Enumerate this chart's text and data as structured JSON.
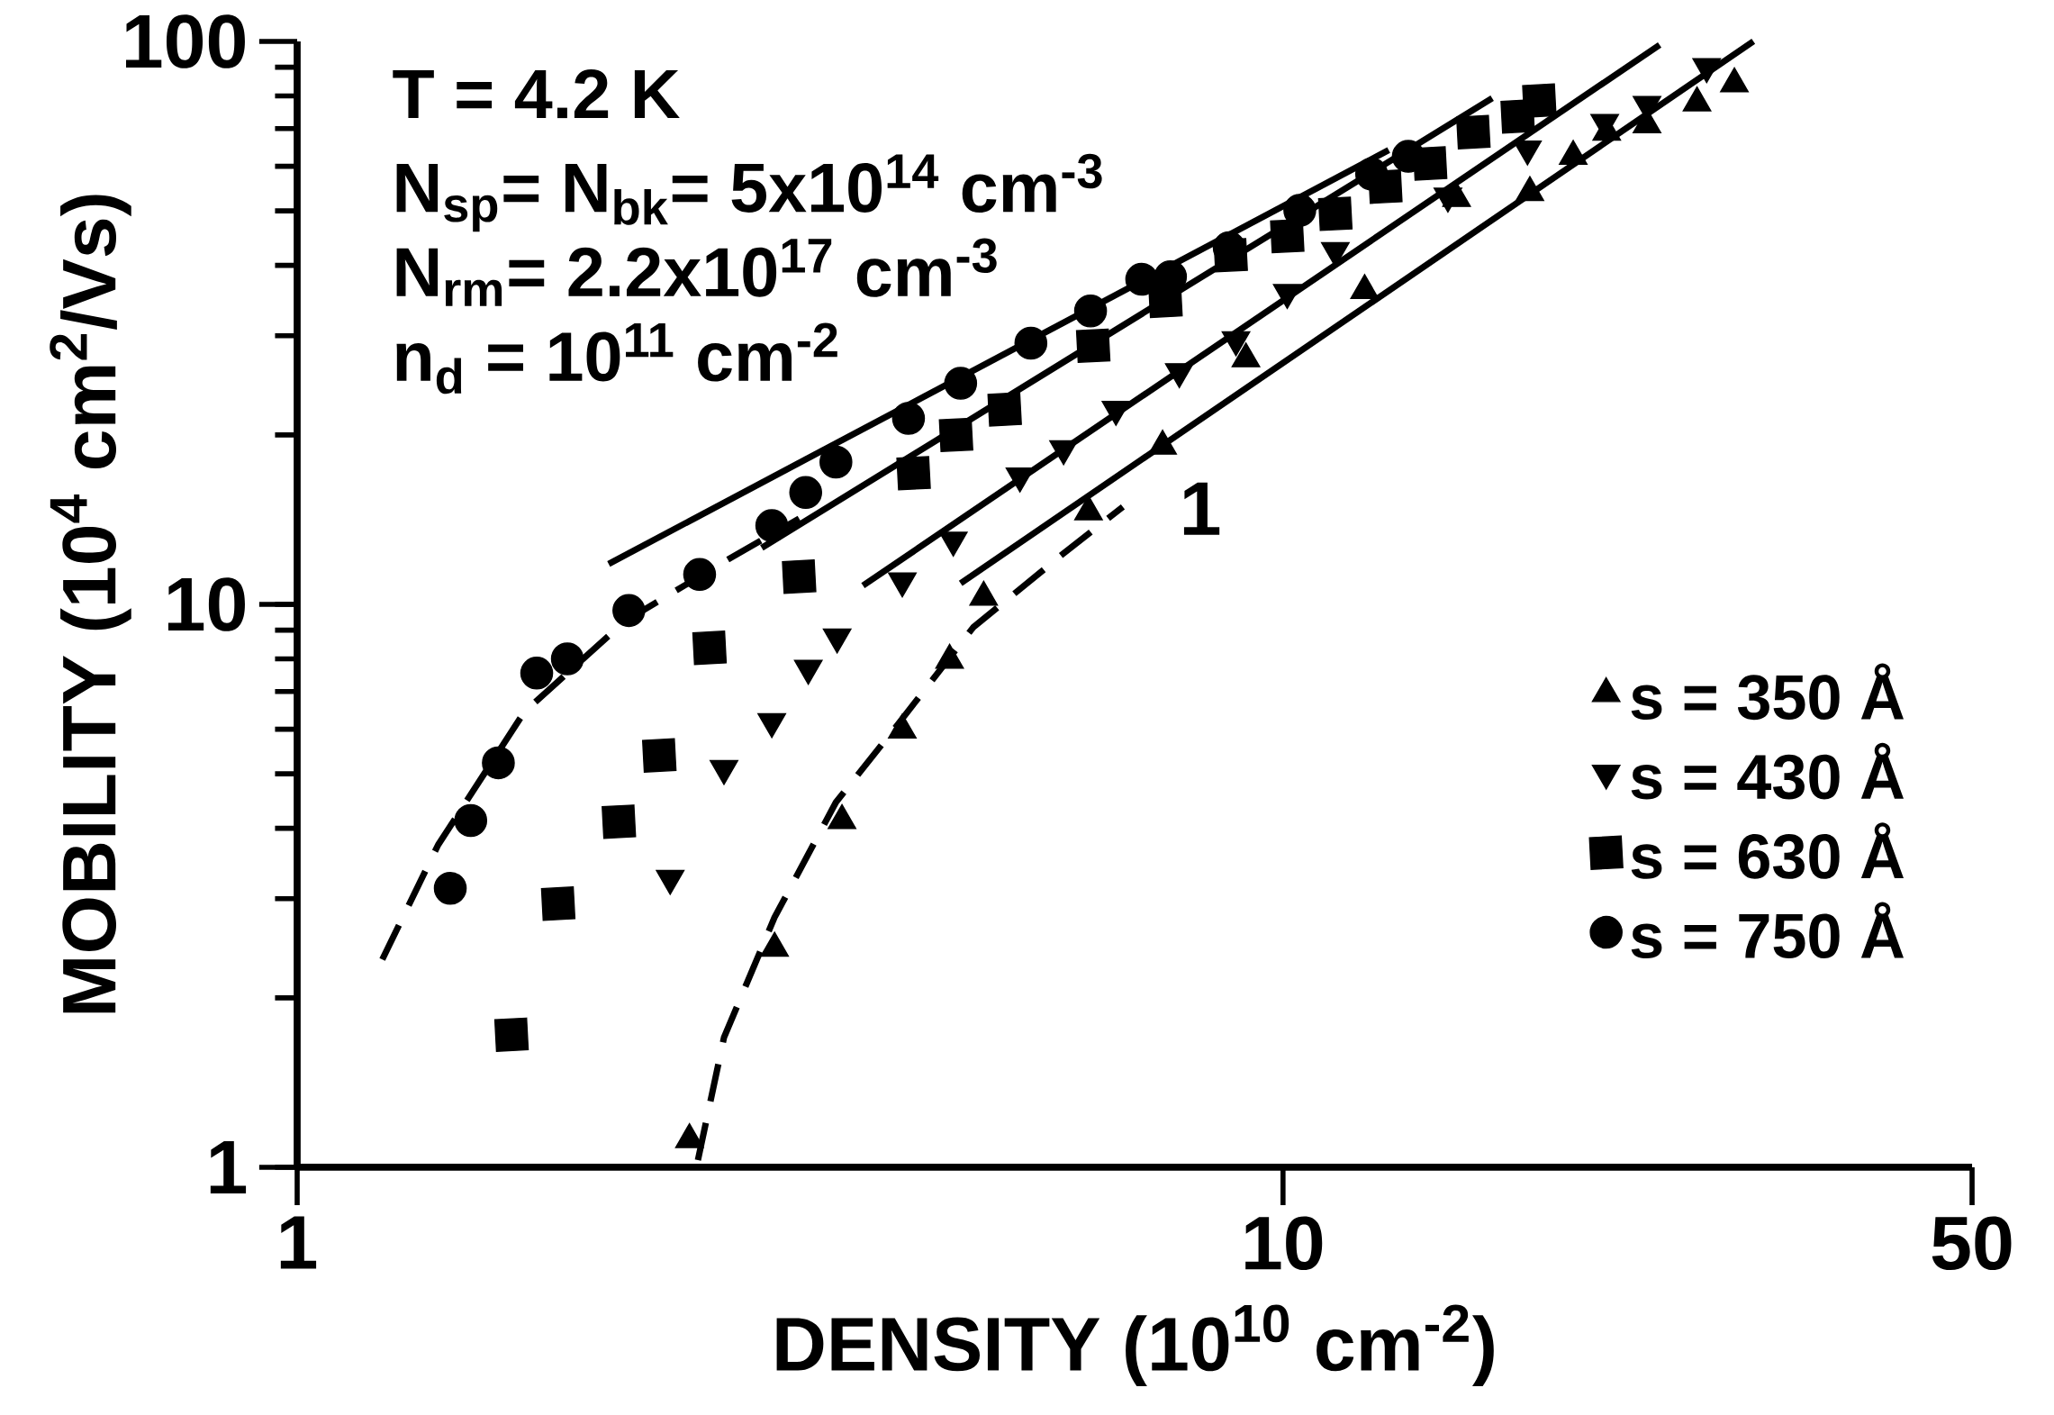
{
  "chart_data": {
    "type": "scatter",
    "xlabel": "DENSITY (10$^{10}$ cm$^{-2}$)",
    "ylabel": "MOBILITY (10$^{4}$ cm$^{2}$/Vs)",
    "log": "xy",
    "legend": "bottom right",
    "xlim": [
      1,
      50
    ],
    "ylim": [
      1,
      100
    ],
    "xticks": [
      1,
      10,
      50
    ],
    "yticks": [
      1,
      10,
      100
    ],
    "annotations": [
      "T = 4.2 K",
      "N$_{sp}$= N$_{bk}$= 5x10$^{14}$ cm$^{-3}$",
      "N$_{rm}$= 2.2x10$^{17}$ cm$^{-3}$",
      "n$_{d}$ = 10$^{11}$ cm$^{-2}$",
      "1"
    ],
    "series": [
      {
        "name": "s = 350 Å",
        "color": "#000000",
        "marker": "triangle",
        "x": [
          2.5,
          3.05,
          3.57,
          4.11,
          4.59,
          4.97,
          6.35,
          7.55,
          9.17,
          12.1,
          15.0,
          17.8,
          19.7,
          21.3,
          23.4,
          26.3,
          28.7
        ],
        "values": [
          1.12,
          2.45,
          4.13,
          5.98,
          7.96,
          10.3,
          14.6,
          19.1,
          27.3,
          36.1,
          52.6,
          53.9,
          62.5,
          69.0,
          71.1,
          77.8,
          84.1
        ]
      },
      {
        "name": "s = 430 Å",
        "color": "#000000",
        "marker": "triangle-down",
        "x": [
          2.39,
          2.71,
          3.03,
          3.3,
          3.53,
          4.11,
          4.63,
          5.41,
          5.99,
          6.77,
          7.85,
          8.96,
          10.1,
          11.3,
          14.7,
          17.7,
          21.2,
          23.4,
          26.9
        ],
        "values": [
          3.26,
          5.11,
          6.19,
          7.7,
          8.75,
          11.0,
          13.0,
          16.9,
          18.9,
          22.2,
          25.9,
          29.5,
          35.8,
          42.5,
          53.1,
          64.4,
          71.8,
          77.3,
          90.2
        ]
      },
      {
        "name": "s = 630 Å",
        "color": "#000000",
        "marker": "square",
        "x": [
          1.65,
          1.84,
          2.12,
          2.33,
          2.62,
          3.23,
          4.22,
          4.66,
          5.22,
          6.42,
          7.6,
          8.85,
          10.1,
          11.3,
          12.7,
          14.1,
          15.6,
          17.3,
          18.2
        ],
        "values": [
          1.72,
          2.94,
          4.11,
          5.39,
          8.37,
          11.2,
          17.1,
          20.0,
          22.2,
          28.8,
          34.6,
          41.7,
          45.1,
          49.4,
          55.2,
          60.7,
          69.0,
          73.6,
          78.5
        ]
      },
      {
        "name": "s = 750 Å",
        "color": "#000000",
        "marker": "circle",
        "x": [
          1.43,
          1.5,
          1.6,
          1.75,
          1.88,
          2.17,
          2.56,
          3.03,
          3.28,
          3.52,
          4.17,
          4.71,
          5.55,
          6.38,
          7.19,
          7.69,
          8.82,
          10.4,
          12.3,
          13.4
        ],
        "values": [
          3.13,
          4.13,
          5.23,
          7.55,
          8.0,
          9.75,
          11.3,
          13.8,
          15.8,
          17.9,
          21.4,
          24.7,
          29.1,
          33.2,
          37.8,
          38.2,
          43.0,
          50.1,
          58.1,
          62.5
        ]
      },
      {
        "type": "line",
        "color": "#000000",
        "line_style": "solid",
        "x": [
          2.07,
          12.8
        ],
        "values": [
          11.8,
          64.1
        ]
      },
      {
        "type": "line",
        "color": "#000000",
        "line_style": "solid",
        "x": [
          2.96,
          16.3
        ],
        "values": [
          12.6,
          79.3
        ]
      },
      {
        "type": "line",
        "color": "#000000",
        "line_style": "solid",
        "x": [
          3.75,
          24.1
        ],
        "values": [
          10.8,
          98.6
        ]
      },
      {
        "type": "line",
        "color": "#000000",
        "line_style": "solid",
        "x": [
          4.71,
          30.0
        ],
        "values": [
          10.9,
          100
        ]
      },
      {
        "type": "line",
        "color": "#000000",
        "line_style": "dashed",
        "x": [
          1.22,
          1.39,
          1.7,
          2.15,
          2.71,
          3.23
        ],
        "values": [
          2.34,
          3.74,
          6.44,
          9.33,
          11.9,
          14.2
        ]
      },
      {
        "type": "line",
        "color": "#000000",
        "line_style": "dashed",
        "x": [
          2.55,
          2.71,
          3.05,
          3.52,
          4.07,
          4.85,
          5.95,
          6.88
        ],
        "values": [
          1.03,
          1.7,
          2.78,
          4.45,
          6.13,
          9.1,
          12.2,
          14.9
        ]
      }
    ]
  }
}
